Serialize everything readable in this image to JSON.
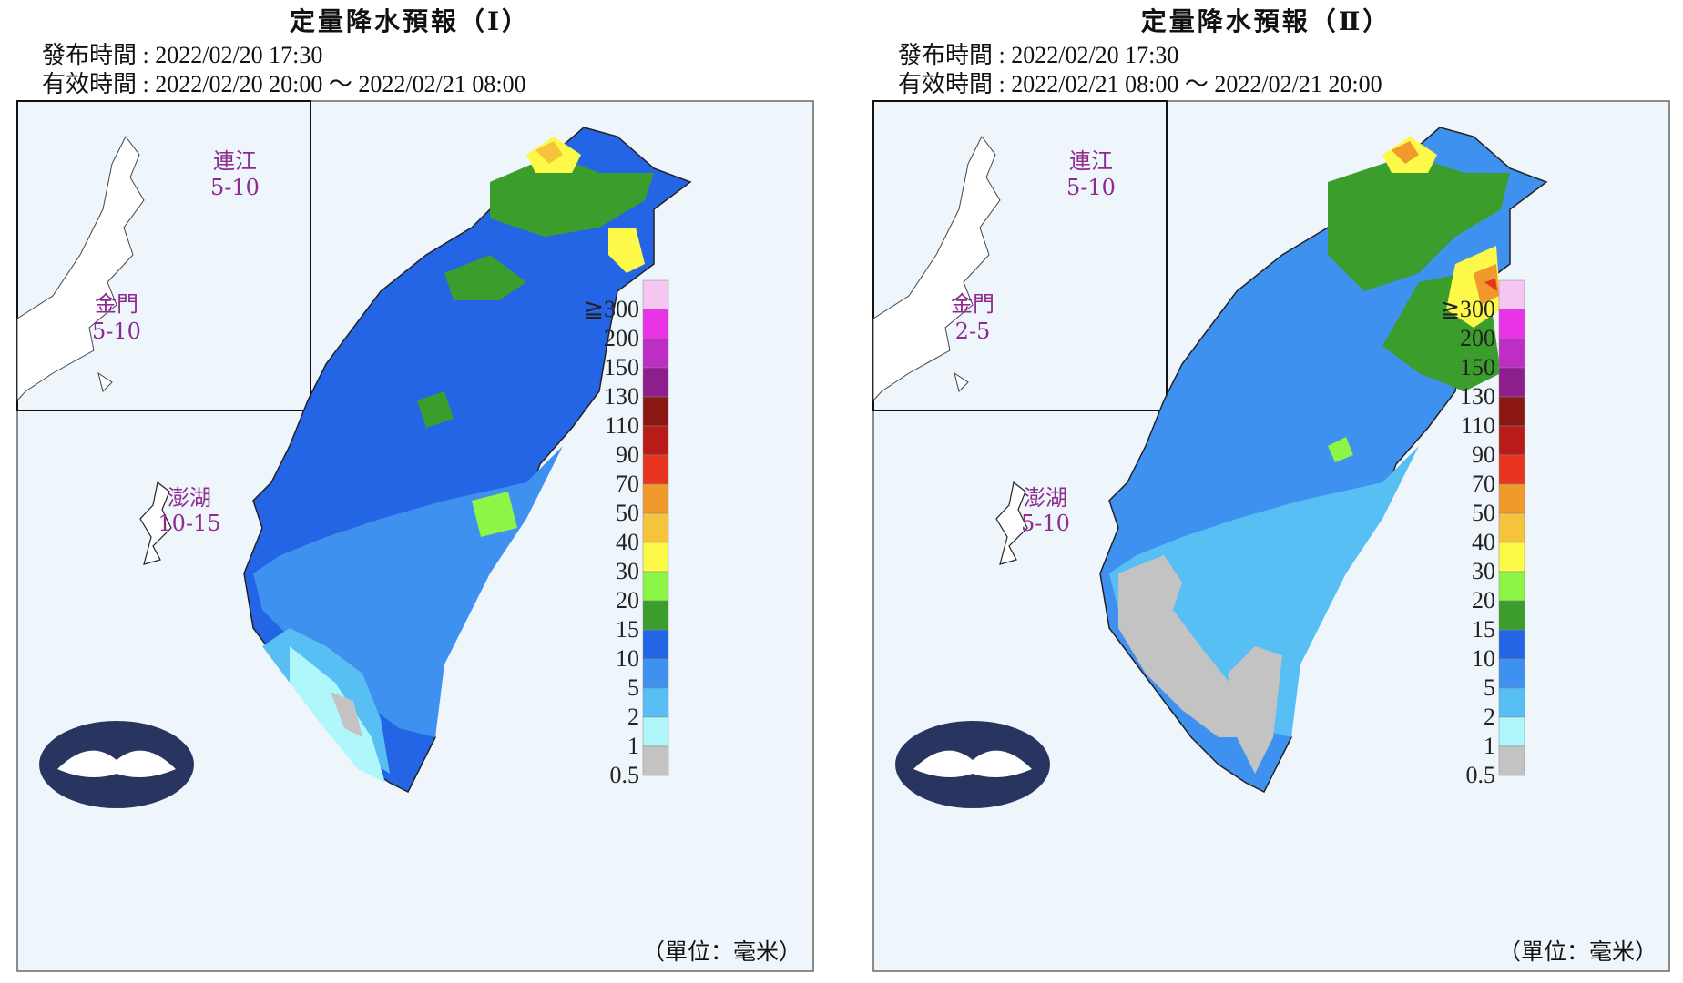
{
  "panels": [
    {
      "title": "定量降水預報（Ⅰ）",
      "issued": "發布時間 : 2022/02/20 17:30",
      "valid": "有效時間 : 2022/02/20 20:00 ～ 2022/02/21 08:00",
      "islands": [
        {
          "name": "連江",
          "value": "5-10"
        },
        {
          "name": "金門",
          "value": "5-10"
        },
        {
          "name": "澎湖",
          "value": "10-15"
        }
      ]
    },
    {
      "title": "定量降水預報（Ⅱ）",
      "issued": "發布時間 : 2022/02/20 17:30",
      "valid": "有效時間 : 2022/02/21 08:00 ～ 2022/02/21 20:00",
      "islands": [
        {
          "name": "連江",
          "value": "5-10"
        },
        {
          "name": "金門",
          "value": "2-5"
        },
        {
          "name": "澎湖",
          "value": "5-10"
        }
      ]
    }
  ],
  "legend": {
    "unit": "（單位：毫米）",
    "levels": [
      "≧300",
      "200",
      "150",
      "130",
      "110",
      "90",
      "70",
      "50",
      "40",
      "30",
      "20",
      "15",
      "10",
      "5",
      "2",
      "1",
      "0.5"
    ],
    "colors": [
      "#f6c6f2",
      "#e833e6",
      "#bf2ec4",
      "#8c1e8d",
      "#8b1712",
      "#b91b18",
      "#e8331f",
      "#f09a2e",
      "#f5c43c",
      "#fdf949",
      "#8df546",
      "#3a9d2c",
      "#2465e6",
      "#3f91f0",
      "#57bff4",
      "#b0f7fb",
      "#c3c3c3"
    ]
  }
}
